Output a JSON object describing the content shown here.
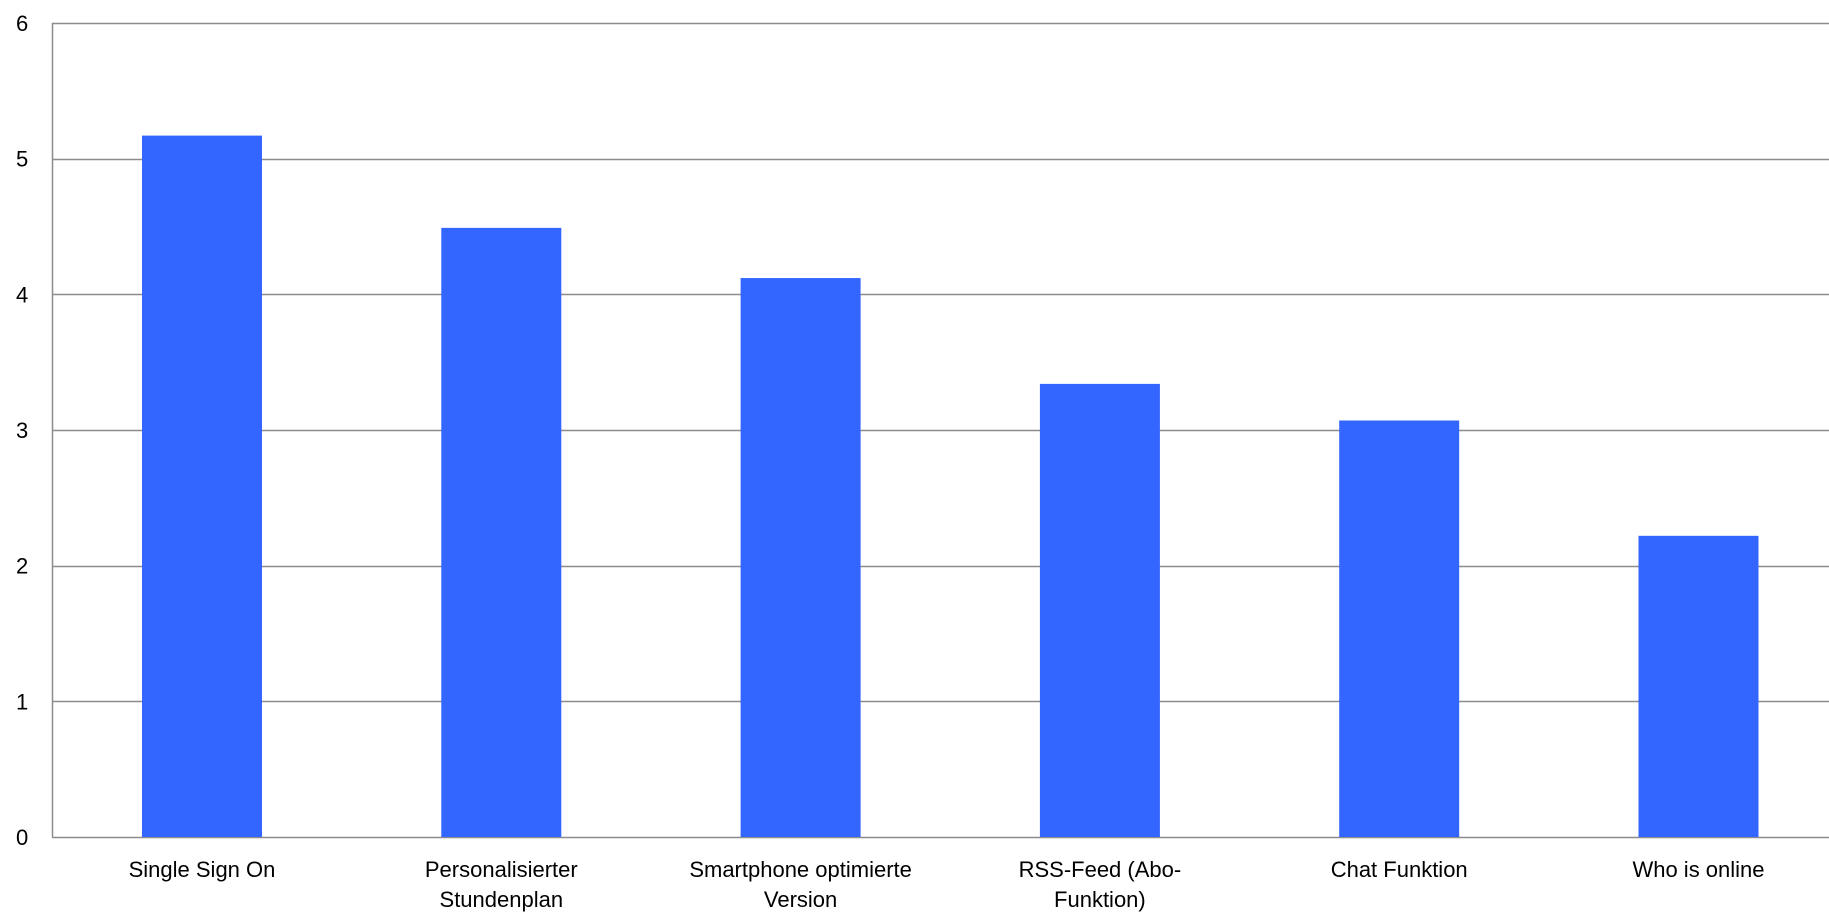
{
  "chart_data": {
    "type": "bar",
    "categories": [
      [
        "Single Sign On"
      ],
      [
        "Personalisierter",
        "Stundenplan"
      ],
      [
        "Smartphone optimierte",
        "Version"
      ],
      [
        "RSS-Feed (Abo-",
        "Funktion)"
      ],
      [
        "Chat Funktion"
      ],
      [
        "Who is online"
      ]
    ],
    "values": [
      5.17,
      4.49,
      4.12,
      3.34,
      3.07,
      2.22
    ],
    "ylim": [
      0,
      6
    ],
    "yticks": [
      "0",
      "1",
      "2",
      "3",
      "4",
      "5",
      "6"
    ],
    "title": "",
    "xlabel": "",
    "ylabel": "",
    "grid": true,
    "bar_color": "#3366ff",
    "grid_color": "#8c8c8c"
  }
}
